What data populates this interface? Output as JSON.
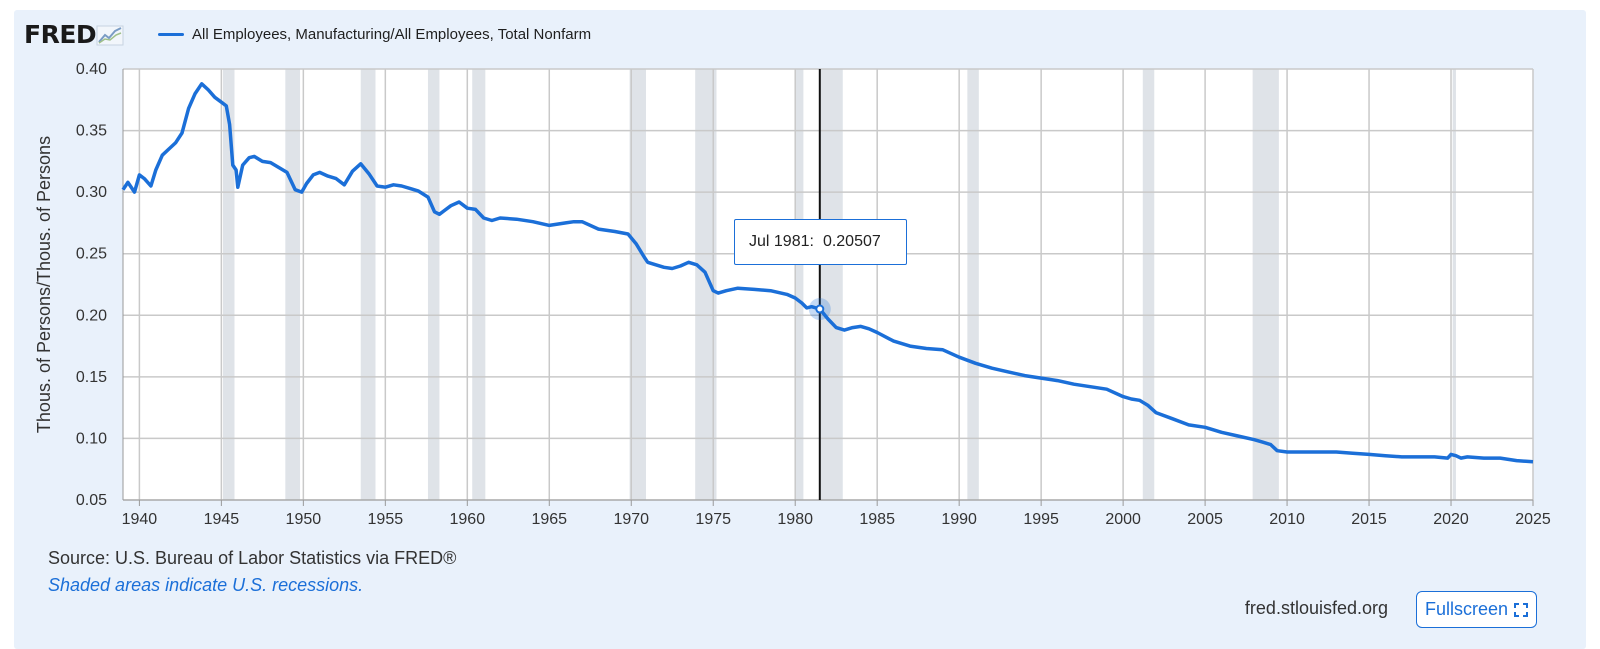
{
  "header": {
    "logo_text": "FRED",
    "logo_icon": "line-chart-icon",
    "legend_label": "All Employees, Manufacturing/All Employees, Total Nonfarm"
  },
  "chart_data": {
    "type": "line",
    "title": "",
    "xlabel": "",
    "ylabel": "Thous. of Persons/Thous. of Persons",
    "xlim": [
      1939,
      2025
    ],
    "ylim": [
      0.05,
      0.4
    ],
    "grid": true,
    "legend_position": "top-left",
    "line_color": "#1b6fd8",
    "recession_color": "#dfe3e8",
    "x_ticks": [
      "1940",
      "1945",
      "1950",
      "1955",
      "1960",
      "1965",
      "1970",
      "1975",
      "1980",
      "1985",
      "1990",
      "1995",
      "2000",
      "2005",
      "2010",
      "2015",
      "2020",
      "2025"
    ],
    "y_ticks": [
      "0.05",
      "0.10",
      "0.15",
      "0.20",
      "0.25",
      "0.30",
      "0.35",
      "0.40"
    ],
    "recessions": [
      [
        1945.1,
        1945.8
      ],
      [
        1948.9,
        1949.8
      ],
      [
        1953.5,
        1954.4
      ],
      [
        1957.6,
        1958.3
      ],
      [
        1960.3,
        1961.1
      ],
      [
        1969.9,
        1970.9
      ],
      [
        1973.9,
        1975.2
      ],
      [
        1980.0,
        1980.5
      ],
      [
        1981.5,
        1982.9
      ],
      [
        1990.5,
        1991.2
      ],
      [
        2001.2,
        2001.9
      ],
      [
        2007.9,
        2009.5
      ],
      [
        2020.1,
        2020.3
      ]
    ],
    "series": [
      {
        "name": "All Employees, Manufacturing/All Employees, Total Nonfarm",
        "x": [
          1939.0,
          1939.3,
          1939.7,
          1940.0,
          1940.3,
          1940.7,
          1941.0,
          1941.4,
          1941.8,
          1942.2,
          1942.6,
          1943.0,
          1943.4,
          1943.8,
          1944.2,
          1944.6,
          1945.0,
          1945.3,
          1945.5,
          1945.7,
          1945.9,
          1946.0,
          1946.3,
          1946.7,
          1947.0,
          1947.5,
          1948.0,
          1948.5,
          1949.0,
          1949.5,
          1949.9,
          1950.2,
          1950.6,
          1951.0,
          1951.5,
          1952.0,
          1952.5,
          1953.0,
          1953.5,
          1954.0,
          1954.5,
          1955.0,
          1955.5,
          1956.0,
          1956.5,
          1957.0,
          1957.6,
          1958.0,
          1958.3,
          1958.6,
          1959.0,
          1959.5,
          1960.0,
          1960.5,
          1961.0,
          1961.5,
          1962.0,
          1963.0,
          1964.0,
          1965.0,
          1966.0,
          1966.5,
          1967.0,
          1968.0,
          1969.0,
          1969.8,
          1970.3,
          1970.8,
          1971.0,
          1971.5,
          1972.0,
          1972.5,
          1973.0,
          1973.5,
          1974.0,
          1974.5,
          1975.0,
          1975.3,
          1975.8,
          1976.5,
          1977.5,
          1978.5,
          1979.5,
          1980.0,
          1980.4,
          1980.7,
          1981.0,
          1981.5,
          1982.0,
          1982.5,
          1983.0,
          1983.5,
          1984.0,
          1984.5,
          1985.0,
          1986.0,
          1987.0,
          1988.0,
          1989.0,
          1990.0,
          1991.0,
          1992.0,
          1993.0,
          1994.0,
          1995.0,
          1996.0,
          1997.0,
          1998.0,
          1999.0,
          2000.0,
          2000.5,
          2001.0,
          2001.5,
          2002.0,
          2003.0,
          2004.0,
          2005.0,
          2006.0,
          2007.0,
          2008.0,
          2008.5,
          2009.0,
          2009.4,
          2010.0,
          2011.0,
          2012.0,
          2013.0,
          2014.0,
          2015.0,
          2016.0,
          2017.0,
          2018.0,
          2019.0,
          2019.8,
          2020.0,
          2020.3,
          2020.6,
          2021.0,
          2022.0,
          2023.0,
          2024.0,
          2025.0
        ],
        "y": [
          0.302,
          0.308,
          0.3,
          0.314,
          0.311,
          0.305,
          0.318,
          0.33,
          0.335,
          0.34,
          0.348,
          0.368,
          0.38,
          0.388,
          0.383,
          0.377,
          0.373,
          0.37,
          0.355,
          0.322,
          0.318,
          0.304,
          0.322,
          0.328,
          0.329,
          0.325,
          0.324,
          0.32,
          0.316,
          0.302,
          0.3,
          0.307,
          0.314,
          0.316,
          0.313,
          0.311,
          0.306,
          0.317,
          0.323,
          0.315,
          0.305,
          0.304,
          0.306,
          0.305,
          0.303,
          0.301,
          0.296,
          0.284,
          0.282,
          0.285,
          0.289,
          0.292,
          0.287,
          0.286,
          0.279,
          0.277,
          0.279,
          0.278,
          0.276,
          0.273,
          0.275,
          0.276,
          0.276,
          0.27,
          0.268,
          0.266,
          0.258,
          0.247,
          0.243,
          0.241,
          0.239,
          0.238,
          0.24,
          0.243,
          0.241,
          0.235,
          0.22,
          0.218,
          0.22,
          0.222,
          0.221,
          0.22,
          0.217,
          0.214,
          0.21,
          0.206,
          0.207,
          0.20507,
          0.197,
          0.19,
          0.188,
          0.19,
          0.191,
          0.189,
          0.186,
          0.179,
          0.175,
          0.173,
          0.172,
          0.166,
          0.161,
          0.157,
          0.154,
          0.151,
          0.149,
          0.147,
          0.144,
          0.142,
          0.14,
          0.134,
          0.132,
          0.131,
          0.127,
          0.121,
          0.116,
          0.111,
          0.109,
          0.105,
          0.102,
          0.099,
          0.097,
          0.095,
          0.09,
          0.089,
          0.089,
          0.089,
          0.089,
          0.088,
          0.087,
          0.086,
          0.085,
          0.085,
          0.085,
          0.084,
          0.087,
          0.086,
          0.084,
          0.085,
          0.084,
          0.084,
          0.082,
          0.081
        ]
      }
    ],
    "tooltip": {
      "x": 1981.5,
      "date_label": "Jul 1981:",
      "value_label": "0.20507"
    }
  },
  "footer": {
    "source": "Source: U.S. Bureau of Labor Statistics via FRED®",
    "note": "Shaded areas indicate U.S. recessions.",
    "site": "fred.stlouisfed.org",
    "fullscreen_label": "Fullscreen",
    "fullscreen_icon": "expand-icon"
  }
}
